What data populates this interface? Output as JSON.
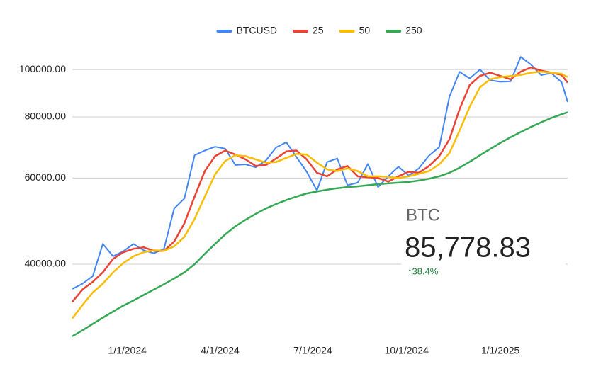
{
  "chart_data": {
    "type": "line",
    "log_scale": true,
    "grid": true,
    "legend": "top",
    "x": [
      "11/8/2023",
      "11/18/2023",
      "11/28/2023",
      "12/8/2023",
      "12/18/2023",
      "12/28/2023",
      "1/7/2024",
      "1/17/2024",
      "1/27/2024",
      "2/6/2024",
      "2/16/2024",
      "2/26/2024",
      "3/7/2024",
      "3/17/2024",
      "3/27/2024",
      "4/6/2024",
      "4/16/2024",
      "4/26/2024",
      "5/6/2024",
      "5/16/2024",
      "5/26/2024",
      "6/5/2024",
      "6/15/2024",
      "6/25/2024",
      "7/5/2024",
      "7/15/2024",
      "7/25/2024",
      "8/4/2024",
      "8/14/2024",
      "8/24/2024",
      "9/3/2024",
      "9/13/2024",
      "9/23/2024",
      "10/3/2024",
      "10/13/2024",
      "10/23/2024",
      "11/2/2024",
      "11/12/2024",
      "11/22/2024",
      "12/2/2024",
      "12/12/2024",
      "12/22/2024",
      "1/1/2025",
      "1/11/2025",
      "1/21/2025",
      "1/31/2025",
      "2/10/2025",
      "2/20/2025",
      "3/2/2025",
      "3/8/2025"
    ],
    "series": [
      {
        "name": "BTCUSD",
        "color": "#4285f4",
        "values": [
          35600,
          36500,
          37800,
          44000,
          41500,
          42500,
          44000,
          42700,
          42100,
          43000,
          52000,
          54500,
          66800,
          68300,
          69500,
          68900,
          63800,
          64000,
          63100,
          65200,
          69300,
          71000,
          66200,
          61800,
          56600,
          64700,
          65800,
          58000,
          58700,
          64100,
          57500,
          60500,
          63300,
          60700,
          62800,
          66700,
          69400,
          88000,
          98900,
          95900,
          100000,
          95100,
          94400,
          94600,
          106100,
          102400,
          97400,
          98300,
          94200,
          85778.83
        ]
      },
      {
        "name": "25",
        "color": "#ea4335",
        "values": [
          33500,
          35500,
          36800,
          38500,
          41000,
          42300,
          43000,
          43300,
          42600,
          42600,
          44500,
          48500,
          55000,
          62000,
          66500,
          68300,
          67000,
          65500,
          63500,
          63800,
          65800,
          68000,
          68300,
          65500,
          61500,
          60500,
          62500,
          63500,
          60500,
          60200,
          60000,
          59000,
          60500,
          61800,
          61500,
          63500,
          66500,
          72000,
          83000,
          93000,
          97000,
          98500,
          97000,
          95500,
          99000,
          101000,
          99500,
          98500,
          97500,
          94000
        ]
      },
      {
        "name": "50",
        "color": "#fbbc04",
        "values": [
          31000,
          33000,
          35000,
          36500,
          38500,
          40200,
          41500,
          42300,
          42700,
          42600,
          43500,
          45500,
          49500,
          55000,
          61000,
          65000,
          66800,
          66500,
          65500,
          64500,
          64700,
          66000,
          67200,
          67000,
          64500,
          62500,
          62000,
          62800,
          62000,
          60500,
          60500,
          60300,
          60000,
          60500,
          61200,
          62000,
          64000,
          67500,
          75000,
          84000,
          92000,
          95500,
          96500,
          97000,
          97500,
          98500,
          99000,
          98500,
          98000,
          96500
        ]
      },
      {
        "name": "250",
        "color": "#34a853",
        "values": [
          28500,
          29300,
          30200,
          31100,
          32000,
          32900,
          33700,
          34600,
          35500,
          36400,
          37400,
          38500,
          40000,
          42000,
          44000,
          46000,
          47800,
          49300,
          50700,
          52000,
          53100,
          54100,
          55000,
          55800,
          56300,
          56800,
          57200,
          57500,
          57700,
          58000,
          58300,
          58500,
          58700,
          58900,
          59300,
          59800,
          60500,
          61500,
          63000,
          64800,
          66800,
          68800,
          70800,
          72700,
          74500,
          76300,
          78000,
          79600,
          81000,
          81800
        ]
      }
    ],
    "xlim": [
      "11/8/2023",
      "3/8/2025"
    ],
    "xticks": [
      "1/1/2024",
      "4/1/2024",
      "7/1/2024",
      "10/1/2024",
      "1/1/2025"
    ],
    "ylim": [
      28000,
      108000
    ],
    "yticks": [
      {
        "value": 40000,
        "label": "40000.00"
      },
      {
        "value": 60000,
        "label": "60000.00"
      },
      {
        "value": 80000,
        "label": "80000.00"
      },
      {
        "value": 100000,
        "label": "100000.00"
      }
    ]
  },
  "ticker": {
    "symbol": "BTC",
    "price": "85,778.83",
    "change": "↑38.4%"
  }
}
